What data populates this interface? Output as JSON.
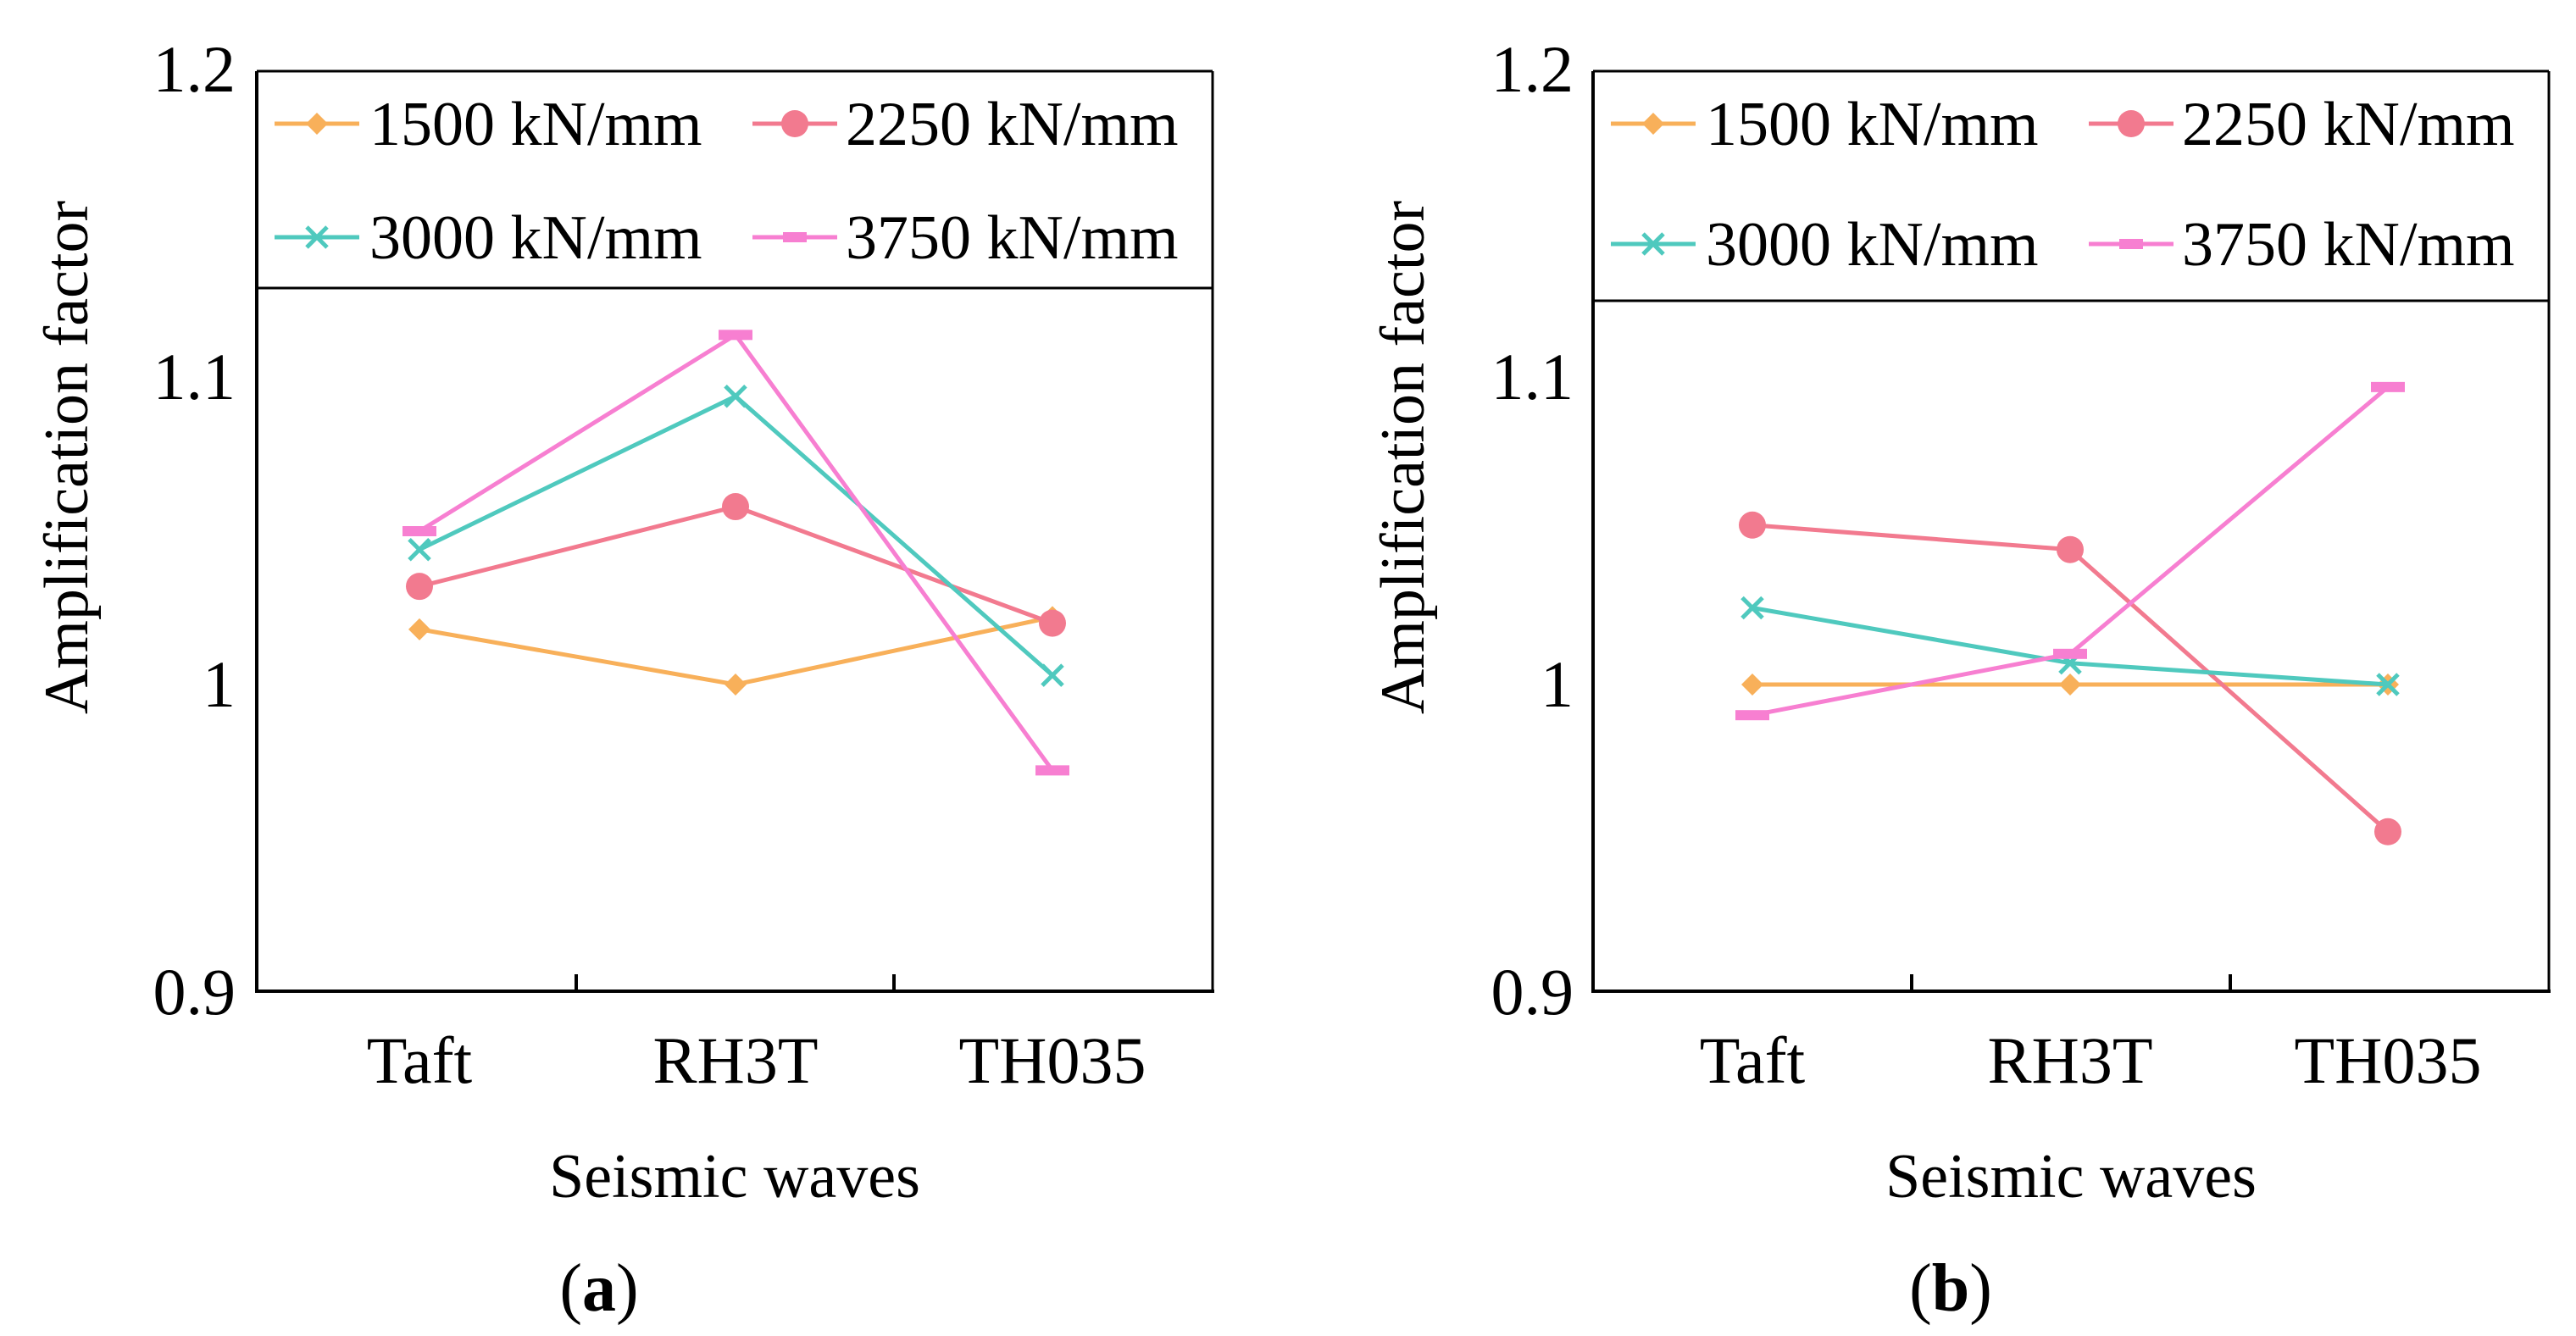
{
  "chart_data": [
    {
      "panel_label": "a",
      "type": "line",
      "categories": [
        "Taft",
        "RH3T",
        "TH035"
      ],
      "xlabel": "Seismic waves",
      "ylabel": "Amplification factor",
      "ylim": [
        0.9,
        1.2
      ],
      "yticks": [
        "0.9",
        "1",
        "1.1",
        "1.2"
      ],
      "yticks_values": [
        0.9,
        1.0,
        1.1,
        1.2
      ],
      "legend_position": "top",
      "series": [
        {
          "name": "1500 kN/mm",
          "color": "#F8B05A",
          "marker": "diamond",
          "values": [
            1.018,
            1.0,
            1.022
          ]
        },
        {
          "name": "2250 kN/mm",
          "color": "#F27A8F",
          "marker": "circle",
          "values": [
            1.032,
            1.058,
            1.02
          ]
        },
        {
          "name": "3000 kN/mm",
          "color": "#4FC9BE",
          "marker": "x",
          "values": [
            1.044,
            1.094,
            1.003
          ]
        },
        {
          "name": "3750 kN/mm",
          "color": "#F77FD1",
          "marker": "dash",
          "values": [
            1.05,
            1.114,
            0.972
          ]
        }
      ]
    },
    {
      "panel_label": "b",
      "type": "line",
      "categories": [
        "Taft",
        "RH3T",
        "TH035"
      ],
      "xlabel": "Seismic waves",
      "ylabel": "Amplification factor",
      "ylim": [
        0.9,
        1.2
      ],
      "yticks": [
        "0.9",
        "1",
        "1.1",
        "1.2"
      ],
      "yticks_values": [
        0.9,
        1.0,
        1.1,
        1.2
      ],
      "legend_position": "top",
      "series": [
        {
          "name": "1500 kN/mm",
          "color": "#F8B05A",
          "marker": "diamond",
          "values": [
            1.0,
            1.0,
            1.0
          ]
        },
        {
          "name": "2250 kN/mm",
          "color": "#F27A8F",
          "marker": "circle",
          "values": [
            1.052,
            1.044,
            0.952
          ]
        },
        {
          "name": "3000 kN/mm",
          "color": "#4FC9BE",
          "marker": "x",
          "values": [
            1.025,
            1.007,
            1.0
          ]
        },
        {
          "name": "3750 kN/mm",
          "color": "#F77FD1",
          "marker": "dash",
          "values": [
            0.99,
            1.01,
            1.097
          ]
        }
      ]
    }
  ]
}
